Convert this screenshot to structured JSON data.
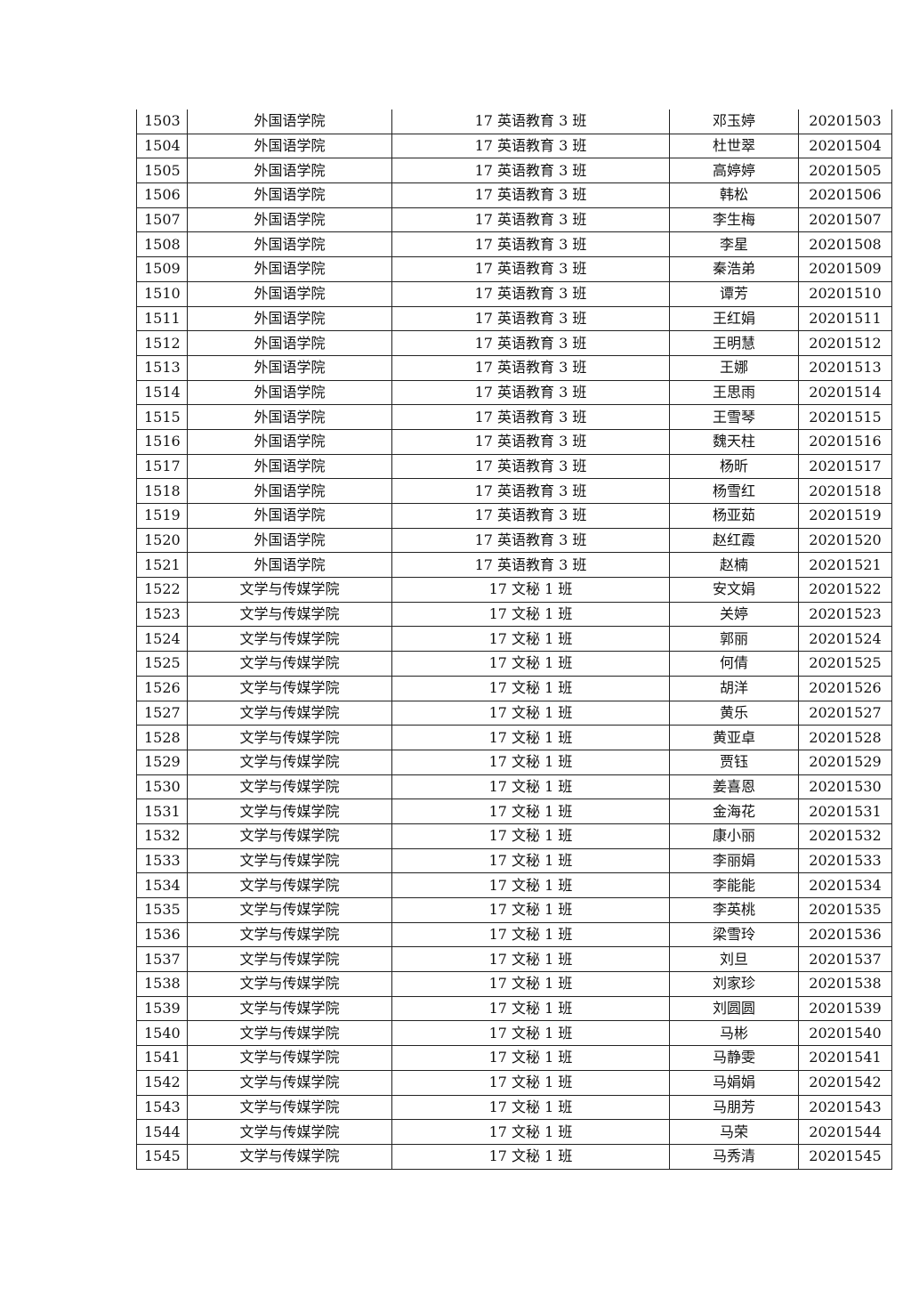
{
  "table": {
    "rows": [
      [
        "1503",
        "外国语学院",
        "17 英语教育 3 班",
        "邓玉婷",
        "20201503"
      ],
      [
        "1504",
        "外国语学院",
        "17 英语教育 3 班",
        "杜世翠",
        "20201504"
      ],
      [
        "1505",
        "外国语学院",
        "17 英语教育 3 班",
        "高婷婷",
        "20201505"
      ],
      [
        "1506",
        "外国语学院",
        "17 英语教育 3 班",
        "韩松",
        "20201506"
      ],
      [
        "1507",
        "外国语学院",
        "17 英语教育 3 班",
        "李生梅",
        "20201507"
      ],
      [
        "1508",
        "外国语学院",
        "17 英语教育 3 班",
        "李星",
        "20201508"
      ],
      [
        "1509",
        "外国语学院",
        "17 英语教育 3 班",
        "秦浩弟",
        "20201509"
      ],
      [
        "1510",
        "外国语学院",
        "17 英语教育 3 班",
        "谭芳",
        "20201510"
      ],
      [
        "1511",
        "外国语学院",
        "17 英语教育 3 班",
        "王红娟",
        "20201511"
      ],
      [
        "1512",
        "外国语学院",
        "17 英语教育 3 班",
        "王明慧",
        "20201512"
      ],
      [
        "1513",
        "外国语学院",
        "17 英语教育 3 班",
        "王娜",
        "20201513"
      ],
      [
        "1514",
        "外国语学院",
        "17 英语教育 3 班",
        "王思雨",
        "20201514"
      ],
      [
        "1515",
        "外国语学院",
        "17 英语教育 3 班",
        "王雪琴",
        "20201515"
      ],
      [
        "1516",
        "外国语学院",
        "17 英语教育 3 班",
        "魏天柱",
        "20201516"
      ],
      [
        "1517",
        "外国语学院",
        "17 英语教育 3 班",
        "杨昕",
        "20201517"
      ],
      [
        "1518",
        "外国语学院",
        "17 英语教育 3 班",
        "杨雪红",
        "20201518"
      ],
      [
        "1519",
        "外国语学院",
        "17 英语教育 3 班",
        "杨亚茹",
        "20201519"
      ],
      [
        "1520",
        "外国语学院",
        "17 英语教育 3 班",
        "赵红霞",
        "20201520"
      ],
      [
        "1521",
        "外国语学院",
        "17 英语教育 3 班",
        "赵楠",
        "20201521"
      ],
      [
        "1522",
        "文学与传媒学院",
        "17 文秘 1 班",
        "安文娟",
        "20201522"
      ],
      [
        "1523",
        "文学与传媒学院",
        "17 文秘 1 班",
        "关婷",
        "20201523"
      ],
      [
        "1524",
        "文学与传媒学院",
        "17 文秘 1 班",
        "郭丽",
        "20201524"
      ],
      [
        "1525",
        "文学与传媒学院",
        "17 文秘 1 班",
        "何倩",
        "20201525"
      ],
      [
        "1526",
        "文学与传媒学院",
        "17 文秘 1 班",
        "胡洋",
        "20201526"
      ],
      [
        "1527",
        "文学与传媒学院",
        "17 文秘 1 班",
        "黄乐",
        "20201527"
      ],
      [
        "1528",
        "文学与传媒学院",
        "17 文秘 1 班",
        "黄亚卓",
        "20201528"
      ],
      [
        "1529",
        "文学与传媒学院",
        "17 文秘 1 班",
        "贾钰",
        "20201529"
      ],
      [
        "1530",
        "文学与传媒学院",
        "17 文秘 1 班",
        "姜喜恩",
        "20201530"
      ],
      [
        "1531",
        "文学与传媒学院",
        "17 文秘 1 班",
        "金海花",
        "20201531"
      ],
      [
        "1532",
        "文学与传媒学院",
        "17 文秘 1 班",
        "康小丽",
        "20201532"
      ],
      [
        "1533",
        "文学与传媒学院",
        "17 文秘 1 班",
        "李丽娟",
        "20201533"
      ],
      [
        "1534",
        "文学与传媒学院",
        "17 文秘 1 班",
        "李能能",
        "20201534"
      ],
      [
        "1535",
        "文学与传媒学院",
        "17 文秘 1 班",
        "李英桃",
        "20201535"
      ],
      [
        "1536",
        "文学与传媒学院",
        "17 文秘 1 班",
        "梁雪玲",
        "20201536"
      ],
      [
        "1537",
        "文学与传媒学院",
        "17 文秘 1 班",
        "刘旦",
        "20201537"
      ],
      [
        "1538",
        "文学与传媒学院",
        "17 文秘 1 班",
        "刘家珍",
        "20201538"
      ],
      [
        "1539",
        "文学与传媒学院",
        "17 文秘 1 班",
        "刘圆圆",
        "20201539"
      ],
      [
        "1540",
        "文学与传媒学院",
        "17 文秘 1 班",
        "马彬",
        "20201540"
      ],
      [
        "1541",
        "文学与传媒学院",
        "17 文秘 1 班",
        "马静雯",
        "20201541"
      ],
      [
        "1542",
        "文学与传媒学院",
        "17 文秘 1 班",
        "马娟娟",
        "20201542"
      ],
      [
        "1543",
        "文学与传媒学院",
        "17 文秘 1 班",
        "马朋芳",
        "20201543"
      ],
      [
        "1544",
        "文学与传媒学院",
        "17 文秘 1 班",
        "马荣",
        "20201544"
      ],
      [
        "1545",
        "文学与传媒学院",
        "17 文秘 1 班",
        "马秀清",
        "20201545"
      ]
    ]
  }
}
